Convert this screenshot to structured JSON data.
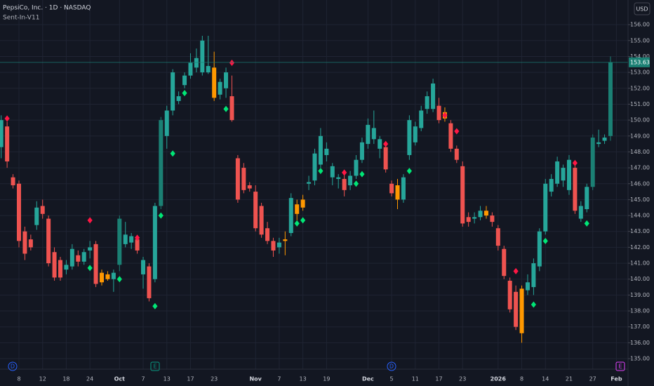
{
  "chart_data": {
    "type": "candlestick",
    "title": "PepsiCo, Inc. · 1D · NASDAQ",
    "indicator": "Sent-In-V11",
    "currency": "USD",
    "events": [
      "D",
      "E",
      "D",
      "E"
    ],
    "categories": [
      null,
      null,
      null,
      "8",
      null,
      null,
      null,
      "12",
      null,
      null,
      null,
      "18",
      null,
      null,
      null,
      "24",
      null,
      null,
      null,
      null,
      "Oct",
      null,
      null,
      null,
      "7",
      null,
      null,
      null,
      "13",
      null,
      null,
      null,
      "17",
      null,
      null,
      null,
      "23",
      null,
      null,
      null,
      null,
      null,
      null,
      "Nov",
      null,
      null,
      null,
      "7",
      null,
      null,
      null,
      "13",
      null,
      null,
      null,
      "19",
      null,
      null,
      null,
      null,
      null,
      null,
      "Dec",
      null,
      null,
      null,
      "5",
      null,
      null,
      null,
      "11",
      null,
      null,
      null,
      "17",
      null,
      null,
      null,
      "23",
      null,
      null,
      null,
      null,
      null,
      "2026",
      null,
      null,
      null,
      "8",
      null,
      null,
      null,
      "14",
      null,
      null,
      null,
      "21",
      null,
      null,
      null,
      "27",
      null,
      null,
      null,
      "Feb"
    ],
    "open": [
      148.3,
      149.6,
      146.4,
      146.0,
      143.0,
      142.5,
      143.4,
      144.6,
      143.8,
      141.7,
      141.2,
      140.6,
      140.8,
      141.5,
      141.1,
      141.8,
      142.2,
      140.4,
      140.0,
      140.0,
      140.9,
      142.2,
      142.3,
      142.5,
      140.3,
      140.8,
      140.0,
      144.6,
      149.0,
      150.6,
      151.2,
      152.2,
      152.8,
      153.3,
      153.0,
      153.0,
      153.3,
      151.6,
      152.0,
      151.5,
      147.6,
      147.0,
      145.9,
      145.5,
      144.6,
      143.2,
      142.4,
      142.0,
      142.5,
      142.9,
      144.1,
      144.5,
      146.0,
      146.2,
      147.2,
      147.8,
      146.4,
      146.3,
      146.3,
      145.9,
      146.5,
      147.5,
      148.5,
      148.8,
      148.2,
      148.3,
      146.0,
      145.9,
      145.0,
      147.8,
      148.6,
      149.5,
      150.7,
      150.7,
      150.9,
      150.5,
      149.8,
      148.2,
      147.1,
      143.9,
      143.8,
      143.9,
      144.3,
      144.0,
      143.2,
      141.9,
      139.9,
      139.2,
      139.4,
      139.3,
      139.5,
      140.8,
      143.0,
      145.5,
      146.0,
      146.2,
      145.6,
      147.0,
      143.8,
      144.4,
      145.8,
      148.5,
      148.7,
      149.0,
      null
    ],
    "high": [
      150.3,
      149.9,
      146.6,
      146.2,
      143.3,
      142.8,
      144.9,
      145.0,
      144.0,
      142.0,
      141.4,
      141.2,
      142.2,
      141.8,
      141.9,
      142.4,
      142.4,
      140.6,
      140.5,
      140.6,
      144.0,
      143.6,
      142.9,
      142.6,
      141.4,
      141.0,
      144.8,
      150.2,
      150.9,
      153.2,
      151.8,
      153.0,
      154.2,
      154.5,
      155.3,
      155.3,
      154.3,
      152.6,
      153.3,
      152.8,
      147.8,
      147.3,
      146.1,
      145.9,
      144.8,
      143.6,
      142.6,
      142.6,
      143.0,
      145.4,
      145.0,
      145.3,
      146.5,
      148.2,
      149.5,
      148.6,
      147.3,
      146.6,
      146.6,
      146.8,
      147.8,
      148.9,
      150.1,
      150.6,
      149.0,
      148.5,
      146.2,
      146.3,
      146.6,
      150.3,
      149.9,
      150.9,
      151.8,
      152.6,
      151.4,
      150.8,
      150.0,
      148.4,
      147.4,
      144.2,
      144.2,
      144.6,
      144.6,
      144.2,
      143.4,
      142.1,
      140.1,
      139.6,
      139.6,
      140.3,
      141.3,
      143.2,
      146.3,
      146.6,
      147.7,
      147.2,
      147.8,
      147.3,
      144.9,
      146.0,
      149.1,
      149.4,
      149.1,
      154.0,
      null
    ],
    "low": [
      147.6,
      147.0,
      145.7,
      142.0,
      141.2,
      141.8,
      143.1,
      143.8,
      140.8,
      139.9,
      139.9,
      140.3,
      140.6,
      140.8,
      140.9,
      141.3,
      139.5,
      139.6,
      139.9,
      139.2,
      140.5,
      142.0,
      141.9,
      141.6,
      139.4,
      138.6,
      139.8,
      144.4,
      148.2,
      150.3,
      151.0,
      152.0,
      152.6,
      153.0,
      152.8,
      152.9,
      151.2,
      151.3,
      151.4,
      149.9,
      144.8,
      145.4,
      145.5,
      143.0,
      142.6,
      142.2,
      141.4,
      141.6,
      141.5,
      142.7,
      143.7,
      144.3,
      145.6,
      145.9,
      147.0,
      147.4,
      145.9,
      145.7,
      145.2,
      145.6,
      146.3,
      147.3,
      148.2,
      148.5,
      147.6,
      146.7,
      145.2,
      144.4,
      144.8,
      147.5,
      148.4,
      149.3,
      150.4,
      150.5,
      149.8,
      149.9,
      148.0,
      147.3,
      143.3,
      143.3,
      143.5,
      143.7,
      143.8,
      143.3,
      141.8,
      140.0,
      137.9,
      136.8,
      136.0,
      139.0,
      139.0,
      140.5,
      142.8,
      145.2,
      145.8,
      145.8,
      145.3,
      144.1,
      143.6,
      144.2,
      145.6,
      148.3,
      148.5,
      148.7,
      null
    ],
    "close": [
      150.0,
      147.4,
      145.9,
      142.4,
      141.6,
      142.0,
      144.5,
      144.1,
      141.0,
      140.1,
      140.1,
      140.9,
      141.9,
      141.1,
      141.7,
      142.0,
      139.7,
      139.8,
      140.3,
      140.4,
      143.8,
      142.8,
      142.7,
      141.8,
      141.2,
      138.8,
      144.6,
      150.0,
      150.6,
      153.0,
      151.5,
      152.8,
      153.6,
      153.9,
      155.0,
      153.4,
      151.4,
      152.4,
      153.0,
      150.0,
      145.0,
      145.6,
      145.7,
      143.2,
      142.8,
      142.4,
      141.8,
      142.3,
      142.4,
      145.1,
      144.7,
      145.0,
      146.1,
      147.9,
      149.0,
      148.2,
      147.1,
      146.4,
      145.6,
      146.5,
      147.5,
      148.6,
      149.7,
      149.5,
      148.8,
      146.9,
      145.4,
      145.0,
      146.4,
      150.0,
      149.6,
      150.6,
      151.5,
      152.3,
      150.0,
      150.1,
      148.2,
      147.5,
      143.5,
      143.6,
      143.9,
      144.3,
      144.0,
      143.6,
      142.1,
      140.2,
      138.1,
      137.0,
      136.6,
      139.8,
      141.0,
      143.0,
      146.0,
      146.3,
      147.4,
      147.0,
      147.5,
      144.3,
      144.6,
      145.8,
      148.9,
      148.6,
      148.9,
      153.63,
      null
    ],
    "colors": [
      "#26a69a",
      "#ef5350",
      "#ef5350",
      "#ef5350",
      "#ef5350",
      "#ef5350",
      "#26a69a",
      "#ef5350",
      "#ef5350",
      "#ef5350",
      "#ef5350",
      "#26a69a",
      "#26a69a",
      "#ef5350",
      "#26a69a",
      "#26a69a",
      "#ef5350",
      "#ff9800",
      "#ff9800",
      "#26a69a",
      "#1b8074",
      "#26a69a",
      "#26a69a",
      "#ef5350",
      "#26a69a",
      "#ef5350",
      "#26a69a",
      "#1b8074",
      "#26a69a",
      "#26a69a",
      "#26a69a",
      "#26a69a",
      "#26a69a",
      "#26a69a",
      "#26a69a",
      "#26a69a",
      "#ff9800",
      "#26a69a",
      "#26a69a",
      "#ef5350",
      "#ef5350",
      "#ef5350",
      "#ef5350",
      "#ef5350",
      "#ef5350",
      "#ef5350",
      "#ef5350",
      "#26a69a",
      "#ff9800",
      "#26a69a",
      "#ff9800",
      "#ff9800",
      "#26a69a",
      "#26a69a",
      "#26a69a",
      "#26a69a",
      "#26a69a",
      "#26a69a",
      "#ef5350",
      "#26a69a",
      "#26a69a",
      "#26a69a",
      "#26a69a",
      "#26a69a",
      "#26a69a",
      "#ef5350",
      "#ef5350",
      "#ff9800",
      "#26a69a",
      "#26a69a",
      "#26a69a",
      "#26a69a",
      "#26a69a",
      "#26a69a",
      "#ef5350",
      "#ff9800",
      "#ef5350",
      "#ef5350",
      "#ef5350",
      "#ef5350",
      "#26a69a",
      "#26a69a",
      "#ff9800",
      "#ef5350",
      "#ef5350",
      "#ef5350",
      "#ef5350",
      "#ef5350",
      "#ff9800",
      "#26a69a",
      "#26a69a",
      "#26a69a",
      "#26a69a",
      "#26a69a",
      "#26a69a",
      "#26a69a",
      "#26a69a",
      "#ef5350",
      "#26a69a",
      "#26a69a",
      "#1b8074",
      "#26a69a",
      "#26a69a",
      "#1b8074",
      null
    ],
    "markers": [
      {
        "color": "#00e676",
        "values": [
          null,
          null,
          null,
          null,
          null,
          null,
          null,
          null,
          null,
          null,
          null,
          null,
          null,
          null,
          null,
          140.7,
          null,
          null,
          null,
          null,
          140.0,
          null,
          null,
          null,
          null,
          null,
          138.3,
          144.0,
          null,
          147.9,
          null,
          151.7,
          null,
          null,
          null,
          null,
          null,
          null,
          150.7,
          null,
          null,
          null,
          null,
          null,
          null,
          null,
          null,
          null,
          null,
          null,
          143.5,
          143.7,
          null,
          null,
          146.8,
          null,
          null,
          null,
          null,
          null,
          146.0,
          146.6,
          null,
          null,
          null,
          null,
          null,
          null,
          null,
          146.8,
          null,
          null,
          null,
          null,
          null,
          null,
          null,
          null,
          null,
          null,
          null,
          null,
          null,
          null,
          null,
          null,
          null,
          null,
          null,
          null,
          138.4,
          null,
          142.4,
          null,
          null,
          null,
          null,
          null,
          null,
          143.5,
          null,
          null,
          null,
          null,
          null
        ]
      },
      {
        "color": "#ff1744",
        "values": [
          null,
          150.1,
          null,
          null,
          null,
          null,
          null,
          null,
          null,
          null,
          null,
          null,
          null,
          null,
          null,
          143.7,
          null,
          null,
          null,
          null,
          null,
          null,
          null,
          142.6,
          null,
          null,
          null,
          null,
          null,
          null,
          null,
          null,
          null,
          null,
          null,
          null,
          null,
          null,
          null,
          153.6,
          null,
          null,
          null,
          null,
          null,
          null,
          null,
          null,
          null,
          null,
          null,
          null,
          null,
          null,
          null,
          null,
          null,
          null,
          146.7,
          null,
          null,
          null,
          null,
          null,
          null,
          148.5,
          null,
          null,
          null,
          null,
          null,
          null,
          null,
          null,
          null,
          150.3,
          null,
          149.3,
          null,
          null,
          null,
          null,
          null,
          null,
          null,
          null,
          null,
          140.5,
          null,
          null,
          null,
          null,
          null,
          null,
          null,
          null,
          null,
          147.3,
          null,
          null,
          null,
          null,
          null,
          null,
          null
        ]
      }
    ],
    "ylim": [
      134.34,
      157.55
    ],
    "yticks": [
      {
        "value": 135,
        "label": "135.00"
      },
      {
        "value": 136,
        "label": "136.00"
      },
      {
        "value": 137,
        "label": "137.00"
      },
      {
        "value": 138,
        "label": "138.00"
      },
      {
        "value": 139,
        "label": "139.00"
      },
      {
        "value": 140,
        "label": "140.00"
      },
      {
        "value": 141,
        "label": "141.00"
      },
      {
        "value": 142,
        "label": "142.00"
      },
      {
        "value": 143,
        "label": "143.00"
      },
      {
        "value": 144,
        "label": "144.00"
      },
      {
        "value": 145,
        "label": "145.00"
      },
      {
        "value": 146,
        "label": "146.00"
      },
      {
        "value": 147,
        "label": "147.00"
      },
      {
        "value": 148,
        "label": "148.00"
      },
      {
        "value": 149,
        "label": "149.00"
      },
      {
        "value": 150,
        "label": "150.00"
      },
      {
        "value": 151,
        "label": "151.00"
      },
      {
        "value": 152,
        "label": "152.00"
      },
      {
        "value": 153,
        "label": "153.00"
      },
      {
        "value": 154,
        "label": "154.00"
      },
      {
        "value": 155,
        "label": "155.00"
      },
      {
        "value": 156,
        "label": "156.00"
      }
    ],
    "grid": true
  }
}
